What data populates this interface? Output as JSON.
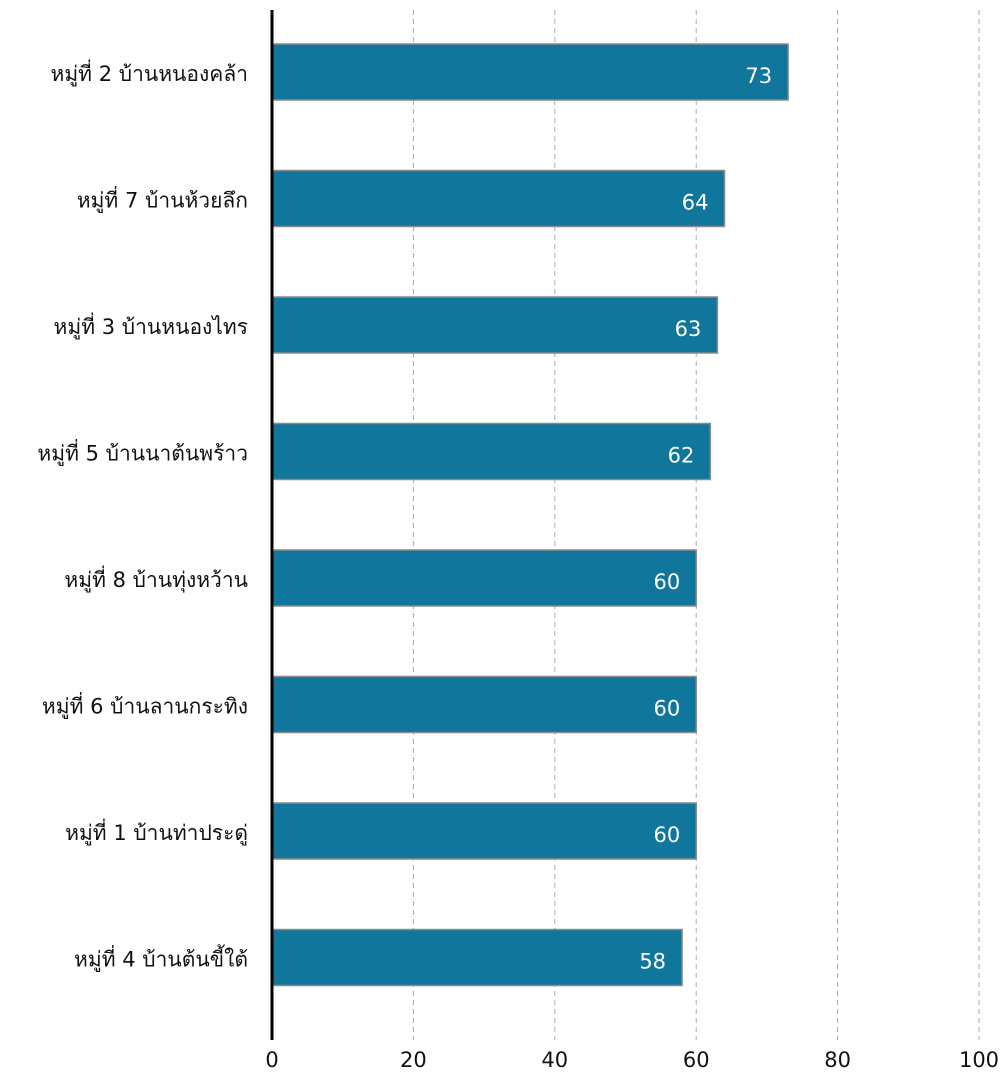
{
  "chart_data": {
    "type": "bar",
    "orientation": "horizontal",
    "categories": [
      "หมู่ที่ 2 บ้านหนองคล้า",
      "หมู่ที่ 7 บ้านห้วยลึก",
      "หมู่ที่ 3 บ้านหนองไทร",
      "หมู่ที่ 5 บ้านนาต้นพร้าว",
      "หมู่ที่ 8 บ้านทุ่งหว้าน",
      "หมู่ที่ 6 บ้านลานกระทิง",
      "หมู่ที่ 1 บ้านท่าประดู่",
      "หมู่ที่ 4 บ้านต้นขี้ใต้"
    ],
    "values": [
      73,
      64,
      63,
      62,
      60,
      60,
      60,
      58
    ],
    "data_labels": [
      "73",
      "64",
      "63",
      "62",
      "60",
      "60",
      "60",
      "58"
    ],
    "x_ticks": [
      "0",
      "20",
      "40",
      "60",
      "80",
      "100"
    ],
    "xlim": [
      0,
      100
    ],
    "grid": "vertical dashed",
    "legend": "none",
    "bar_color": "#10769b",
    "bar_edge_color": "#8a8a8a",
    "grid_color": "#a6a8c7",
    "axis_color": "#000000"
  }
}
